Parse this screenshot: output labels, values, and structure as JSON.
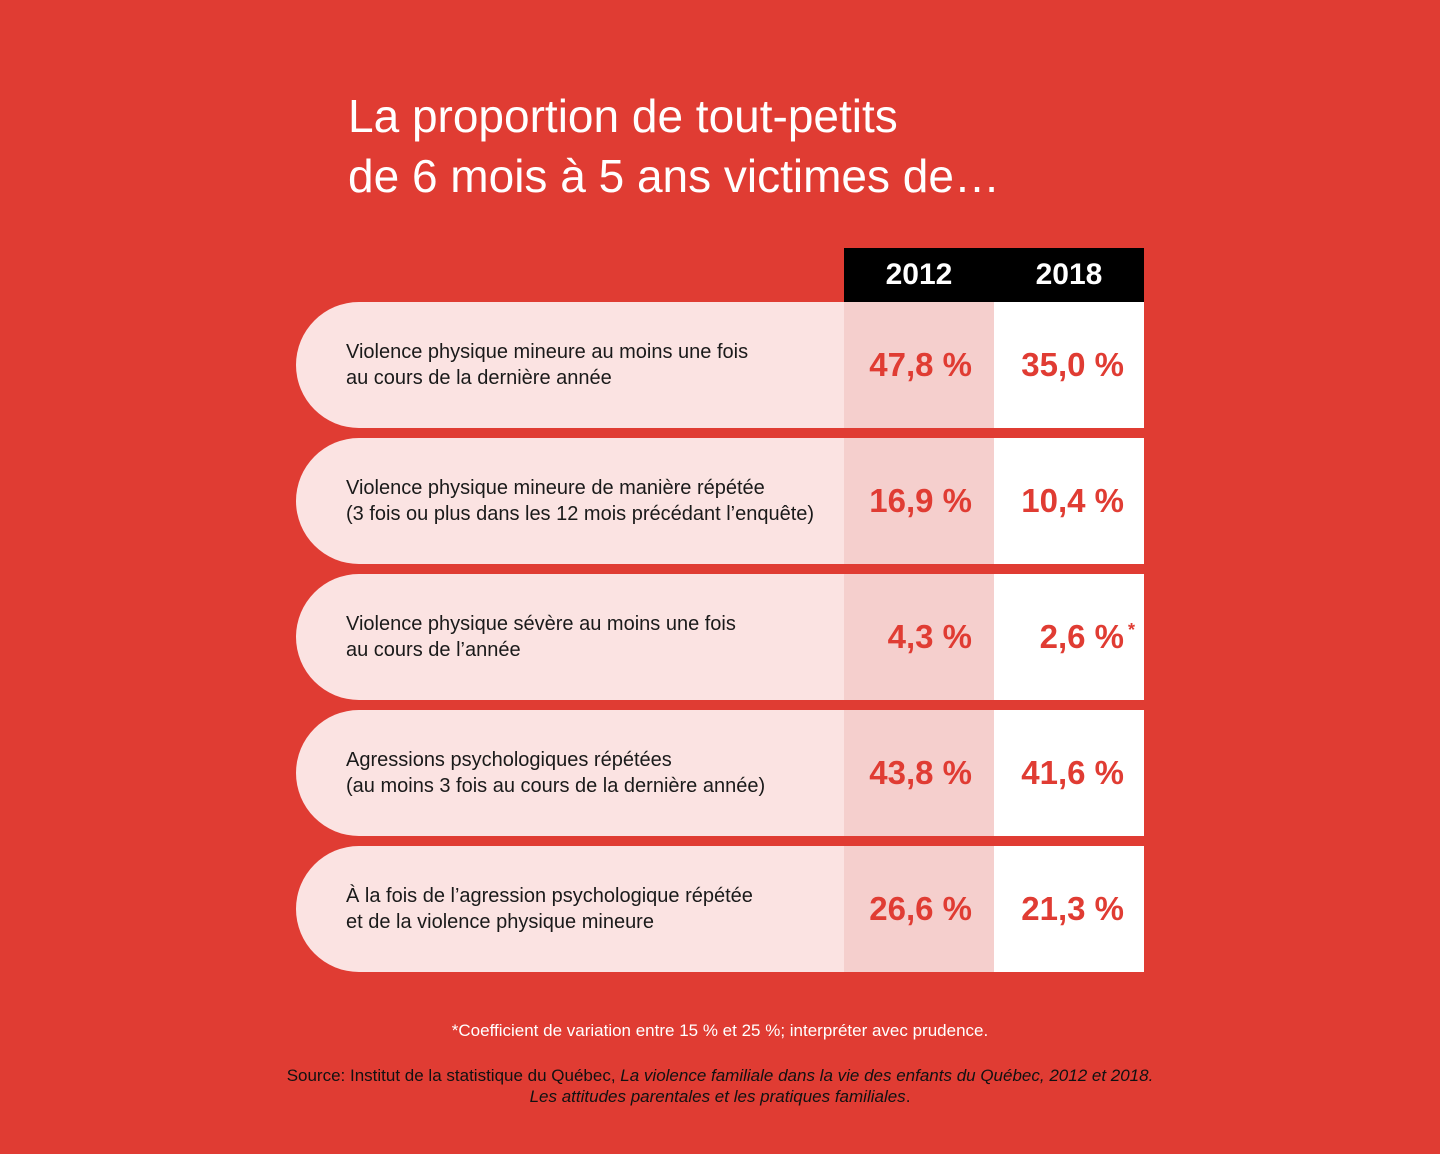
{
  "title": {
    "line1": "La proportion de tout-petits",
    "line2": "de 6 mois à 5 ans victimes de…"
  },
  "colors": {
    "background": "#e03c33",
    "header_bg": "#000000",
    "label_bg": "#fbe3e2",
    "col2012_bg": "#f5cfcd",
    "col2018_bg": "#ffffff",
    "value_text": "#e03c33"
  },
  "chart_data": {
    "type": "table",
    "columns": [
      "2012",
      "2018"
    ],
    "rows": [
      {
        "label_line1": "Violence physique mineure au moins une fois",
        "label_line2": "au cours de la dernière année",
        "v2012": "47,8 %",
        "v2018": "35,0 %",
        "values": [
          47.8,
          35.0
        ],
        "note": ""
      },
      {
        "label_line1": "Violence physique mineure de manière répétée",
        "label_line2": "(3 fois ou plus dans les 12 mois précédant l’enquête)",
        "v2012": "16,9 %",
        "v2018": "10,4 %",
        "values": [
          16.9,
          10.4
        ],
        "note": ""
      },
      {
        "label_line1": "Violence physique sévère au moins une fois",
        "label_line2": "au cours de l’année",
        "v2012": "4,3 %",
        "v2018": "2,6 %",
        "values": [
          4.3,
          2.6
        ],
        "note": "*"
      },
      {
        "label_line1": "Agressions psychologiques répétées",
        "label_line2": "(au moins 3 fois au cours de la dernière année)",
        "v2012": "43,8 %",
        "v2018": "41,6 %",
        "values": [
          43.8,
          41.6
        ],
        "note": ""
      },
      {
        "label_line1": "À la fois de l’agression psychologique répétée",
        "label_line2": "et de la violence physique mineure",
        "v2012": "26,6 %",
        "v2018": "21,3 %",
        "values": [
          26.6,
          21.3
        ],
        "note": ""
      }
    ]
  },
  "footnote": "*Coefficient de variation entre 15 % et 25 %; interpréter avec prudence.",
  "source": {
    "prefix": "Source: Institut de la statistique du Québec, ",
    "title_line1": "La violence familiale dans la vie des enfants du Québec, 2012 et 2018.",
    "title_line2": "Les attitudes parentales et les pratiques familiales",
    "end": "."
  }
}
